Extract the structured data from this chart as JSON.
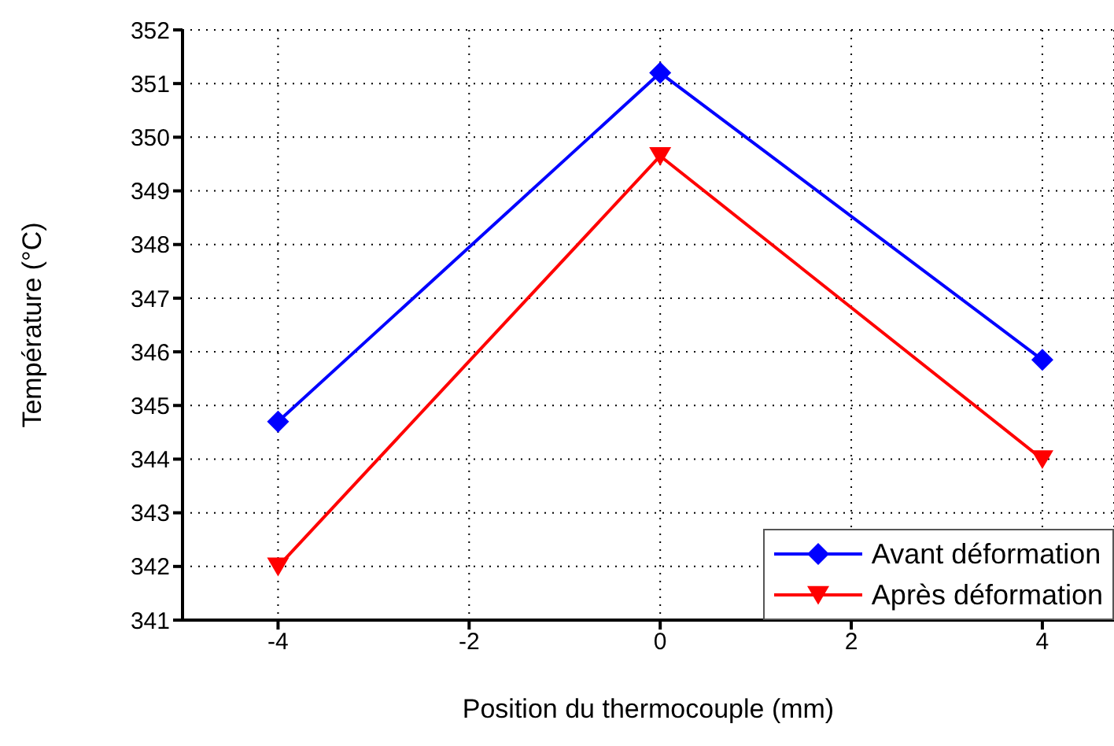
{
  "chart_data": {
    "type": "line",
    "xlabel": "Position du thermocouple (mm)",
    "ylabel": "Température (°C)",
    "x": [
      -4,
      0,
      4
    ],
    "series": [
      {
        "name": "Avant déformation",
        "color": "#0000ff",
        "values": [
          344.7,
          351.2,
          345.85
        ],
        "marker": "diamond"
      },
      {
        "name": "Après déformation",
        "color": "#ff0000",
        "values": [
          342.0,
          349.65,
          344.0
        ],
        "marker": "triangle"
      }
    ],
    "xlim": [
      -5,
      4.75
    ],
    "xticks": [
      -4,
      -2,
      0,
      2,
      4
    ],
    "ylim": [
      341,
      352
    ],
    "yticks": [
      341,
      342,
      343,
      344,
      345,
      346,
      347,
      348,
      349,
      350,
      351,
      352
    ],
    "grid": true,
    "legend": "bottom right",
    "line_style": "solid"
  }
}
